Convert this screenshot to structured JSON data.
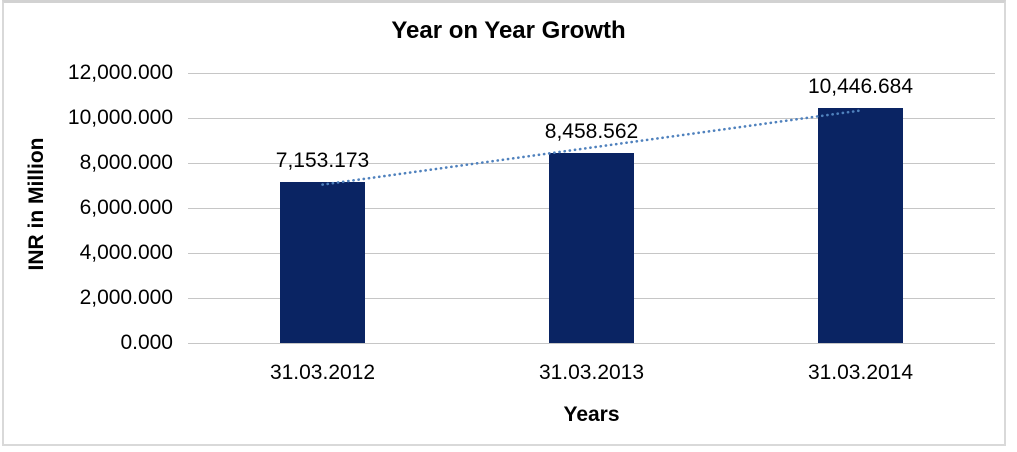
{
  "chart_data": {
    "type": "bar",
    "title": "Year on Year Growth",
    "xlabel": "Years",
    "ylabel": "INR in Million",
    "categories": [
      "31.03.2012",
      "31.03.2013",
      "31.03.2014"
    ],
    "series": [
      {
        "name": "INR in Million",
        "values": [
          7153.173,
          8458.562,
          10446.684
        ]
      }
    ],
    "data_labels": [
      "7,153.173",
      "8,458.562",
      "10,446.684"
    ],
    "ylim": [
      0,
      12000
    ],
    "ytick_step": 2000,
    "ytick_labels": [
      "0.000",
      "2,000.000",
      "4,000.000",
      "6,000.000",
      "8,000.000",
      "10,000.000",
      "12,000.000"
    ],
    "grid": true,
    "legend": "none",
    "trendline": {
      "type": "linear",
      "style": "dotted"
    },
    "colors": {
      "bar": "#0a2463",
      "trendline": "#4f81bd",
      "gridline": "#c6c6c6",
      "text": "#000000",
      "chart_border": "#d9d9d9",
      "background": "#ffffff"
    }
  }
}
